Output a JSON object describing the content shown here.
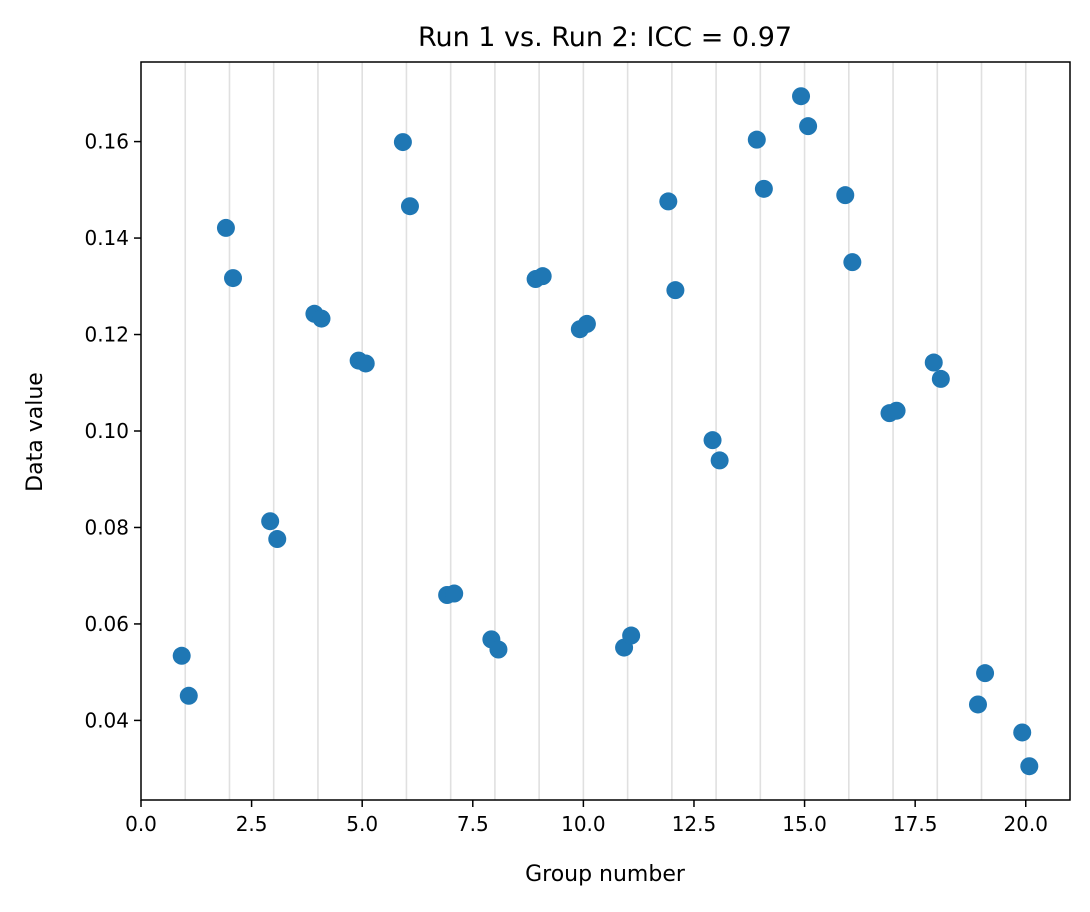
{
  "chart_data": {
    "type": "scatter",
    "title": "Run 1 vs. Run 2: ICC = 0.97",
    "xlabel": "Group number",
    "ylabel": "Data value",
    "xlim": [
      0.0,
      21.0
    ],
    "ylim": [
      0.0235,
      0.1765
    ],
    "xticks": [
      0.0,
      2.5,
      5.0,
      7.5,
      10.0,
      12.5,
      15.0,
      17.5,
      20.0
    ],
    "xtick_labels": [
      "0.0",
      "2.5",
      "5.0",
      "7.5",
      "10.0",
      "12.5",
      "15.0",
      "17.5",
      "20.0"
    ],
    "yticks": [
      0.04,
      0.06,
      0.08,
      0.1,
      0.12,
      0.14,
      0.16
    ],
    "ytick_labels": [
      "0.04",
      "0.06",
      "0.08",
      "0.10",
      "0.12",
      "0.14",
      "0.16"
    ],
    "vertical_gridlines_at": [
      1,
      2,
      3,
      4,
      5,
      6,
      7,
      8,
      9,
      10,
      11,
      12,
      13,
      14,
      15,
      16,
      17,
      18,
      19,
      20
    ],
    "grid": "vertical lines at each integer group",
    "marker_color": "#1f77b4",
    "grid_color": "#e0e0e0",
    "points": [
      {
        "x": 0.92,
        "y": 0.0534
      },
      {
        "x": 1.08,
        "y": 0.0451
      },
      {
        "x": 1.92,
        "y": 0.1421
      },
      {
        "x": 2.08,
        "y": 0.1317
      },
      {
        "x": 2.92,
        "y": 0.0813
      },
      {
        "x": 3.08,
        "y": 0.0776
      },
      {
        "x": 3.92,
        "y": 0.1243
      },
      {
        "x": 4.08,
        "y": 0.1233
      },
      {
        "x": 4.92,
        "y": 0.1146
      },
      {
        "x": 5.08,
        "y": 0.114
      },
      {
        "x": 5.92,
        "y": 0.1599
      },
      {
        "x": 6.08,
        "y": 0.1466
      },
      {
        "x": 6.92,
        "y": 0.066
      },
      {
        "x": 7.08,
        "y": 0.0663
      },
      {
        "x": 7.92,
        "y": 0.0568
      },
      {
        "x": 8.08,
        "y": 0.0547
      },
      {
        "x": 8.92,
        "y": 0.1315
      },
      {
        "x": 9.08,
        "y": 0.1321
      },
      {
        "x": 9.92,
        "y": 0.1211
      },
      {
        "x": 10.08,
        "y": 0.1222
      },
      {
        "x": 10.92,
        "y": 0.0551
      },
      {
        "x": 11.08,
        "y": 0.0576
      },
      {
        "x": 11.92,
        "y": 0.1476
      },
      {
        "x": 12.08,
        "y": 0.1292
      },
      {
        "x": 12.92,
        "y": 0.0981
      },
      {
        "x": 13.08,
        "y": 0.0939
      },
      {
        "x": 13.92,
        "y": 0.1604
      },
      {
        "x": 14.08,
        "y": 0.1502
      },
      {
        "x": 14.92,
        "y": 0.1694
      },
      {
        "x": 15.08,
        "y": 0.1632
      },
      {
        "x": 15.92,
        "y": 0.1489
      },
      {
        "x": 16.08,
        "y": 0.135
      },
      {
        "x": 16.92,
        "y": 0.1037
      },
      {
        "x": 17.08,
        "y": 0.1042
      },
      {
        "x": 17.92,
        "y": 0.1142
      },
      {
        "x": 18.08,
        "y": 0.1108
      },
      {
        "x": 18.92,
        "y": 0.0433
      },
      {
        "x": 19.08,
        "y": 0.0498
      },
      {
        "x": 19.92,
        "y": 0.0375
      },
      {
        "x": 20.08,
        "y": 0.0305
      }
    ]
  }
}
